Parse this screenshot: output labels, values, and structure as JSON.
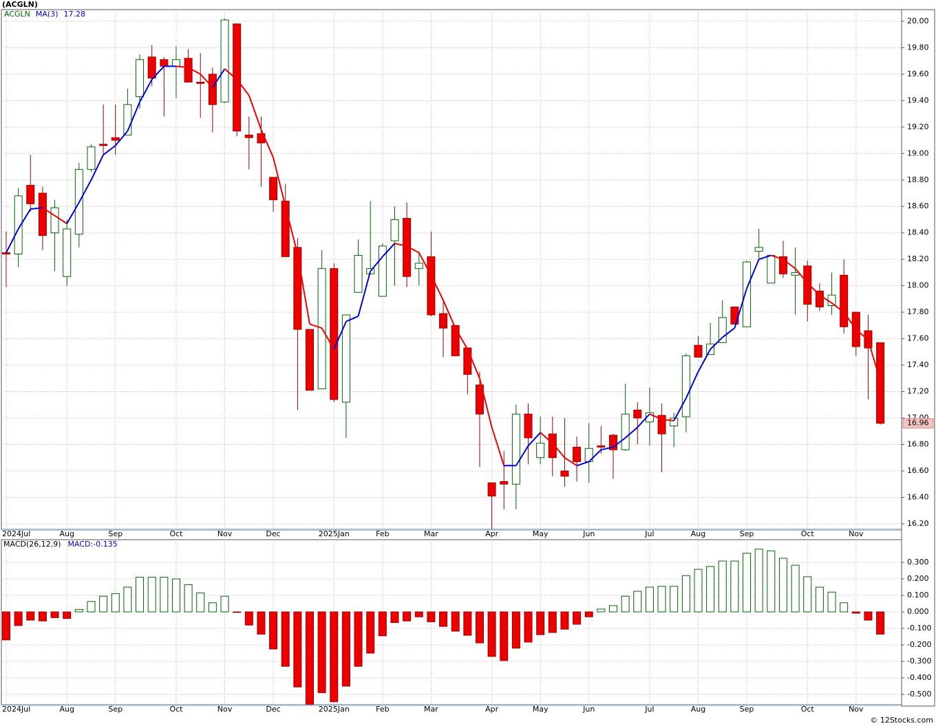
{
  "chart_data": [
    {
      "type": "candlestick",
      "title": "(ACGLN)",
      "symbol": "ACGLN",
      "symbol_color": "#006400",
      "up_color": "#ffffff",
      "up_edge": "#006400",
      "down_color": "#ee0000",
      "down_edge": "#990000",
      "open": [
        18.25,
        18.24,
        18.76,
        18.7,
        18.4,
        18.07,
        18.39,
        18.88,
        19.07,
        19.12,
        19.14,
        19.43,
        19.73,
        19.71,
        19.66,
        19.72,
        19.54,
        19.6,
        19.39,
        19.98,
        19.14,
        19.15,
        18.82,
        18.64,
        18.29,
        17.67,
        17.22,
        18.13,
        17.12,
        17.95,
        18.09,
        17.92,
        18.34,
        18.51,
        18.13,
        18.22,
        17.79,
        17.7,
        17.53,
        17.25,
        16.51,
        16.52,
        16.5,
        17.03,
        16.7,
        16.88,
        16.6,
        16.78,
        16.67,
        16.79,
        16.87,
        16.76,
        17.06,
        16.97,
        17.02,
        16.94,
        17.01,
        17.55,
        17.48,
        17.57,
        17.84,
        17.69,
        18.26,
        18.02,
        18.22,
        18.08,
        18.15,
        17.96,
        17.85,
        18.08,
        17.8,
        17.66,
        17.57
      ],
      "high": [
        18.41,
        18.74,
        18.99,
        18.75,
        18.65,
        18.5,
        18.93,
        19.07,
        19.37,
        19.37,
        19.49,
        19.75,
        19.82,
        19.73,
        19.81,
        19.79,
        19.76,
        19.65,
        20.02,
        19.98,
        19.28,
        19.28,
        18.82,
        18.77,
        18.36,
        17.67,
        18.27,
        18.17,
        17.78,
        18.35,
        18.64,
        18.32,
        18.6,
        18.63,
        18.26,
        18.41,
        17.9,
        17.7,
        17.53,
        17.35,
        16.51,
        16.75,
        17.1,
        17.11,
        17.01,
        17.01,
        17.0,
        16.86,
        16.96,
        16.94,
        16.88,
        17.26,
        17.12,
        17.23,
        17.11,
        17.04,
        17.49,
        17.62,
        17.72,
        17.89,
        17.84,
        18.19,
        18.43,
        18.23,
        18.34,
        18.29,
        18.19,
        18.02,
        18.1,
        18.2,
        17.8,
        17.78,
        17.57
      ],
      "low": [
        17.99,
        18.14,
        18.56,
        18.27,
        18.11,
        18.0,
        18.29,
        18.86,
        18.99,
        18.99,
        19.14,
        19.34,
        19.51,
        19.28,
        19.42,
        19.54,
        19.27,
        19.16,
        19.38,
        19.13,
        18.88,
        18.75,
        18.56,
        18.22,
        17.06,
        17.21,
        17.22,
        17.12,
        16.85,
        17.95,
        18.09,
        17.92,
        18.0,
        17.99,
        18.0,
        17.77,
        17.46,
        17.47,
        17.18,
        16.63,
        16.16,
        16.31,
        16.31,
        16.65,
        16.65,
        16.56,
        16.48,
        16.52,
        16.51,
        16.73,
        16.54,
        16.75,
        16.8,
        16.79,
        16.59,
        16.78,
        16.89,
        17.46,
        17.48,
        17.57,
        17.71,
        17.69,
        18.2,
        18.02,
        18.06,
        17.78,
        17.73,
        17.81,
        17.78,
        17.64,
        17.47,
        17.14,
        16.95
      ],
      "close": [
        18.24,
        18.68,
        18.62,
        18.38,
        18.59,
        18.43,
        18.88,
        19.05,
        19.06,
        19.1,
        19.37,
        19.71,
        19.57,
        19.66,
        19.71,
        19.54,
        19.53,
        19.37,
        20.01,
        19.17,
        19.12,
        19.08,
        18.65,
        18.22,
        17.67,
        17.21,
        18.13,
        17.14,
        17.78,
        18.23,
        18.13,
        18.3,
        18.5,
        18.07,
        18.17,
        17.78,
        17.68,
        17.47,
        17.33,
        17.03,
        16.41,
        16.5,
        17.03,
        16.85,
        16.81,
        16.7,
        16.56,
        16.67,
        16.77,
        16.78,
        16.76,
        17.03,
        17.0,
        17.04,
        16.88,
        17.0,
        17.47,
        17.46,
        17.56,
        17.76,
        17.71,
        18.18,
        18.29,
        18.23,
        18.09,
        18.1,
        17.86,
        17.84,
        17.93,
        17.69,
        17.54,
        17.53,
        16.96
      ],
      "last_box_color": "#f4c4c4",
      "ma": {
        "name": "MA(3)",
        "up_color": "#0000dd",
        "down_color": "#ee0000",
        "values": [
          18.25,
          18.43,
          18.58,
          18.59,
          18.53,
          18.47,
          18.63,
          18.8,
          18.99,
          19.06,
          19.17,
          19.39,
          19.56,
          19.66,
          19.66,
          19.65,
          19.6,
          19.5,
          19.64,
          19.56,
          19.44,
          19.18,
          18.97,
          18.6,
          18.24,
          17.71,
          17.68,
          17.52,
          17.73,
          17.77,
          18.11,
          18.22,
          18.32,
          18.3,
          18.25,
          18.08,
          17.89,
          17.68,
          17.52,
          17.3,
          16.93,
          16.64,
          16.64,
          16.79,
          16.89,
          16.81,
          16.7,
          16.64,
          16.67,
          16.76,
          16.78,
          16.85,
          16.93,
          17.03,
          16.99,
          16.98,
          17.15,
          17.35,
          17.52,
          17.61,
          17.68,
          17.98,
          18.2,
          18.23,
          18.2,
          18.13,
          18.02,
          17.93,
          17.87,
          17.8,
          17.67,
          17.59,
          17.28
        ]
      },
      "ylim": [
        16.158,
        20.088
      ],
      "yticks": [
        {
          "value": 16.2,
          "label": "16.20"
        },
        {
          "value": 16.4,
          "label": "16.40"
        },
        {
          "value": 16.6,
          "label": "16.60"
        },
        {
          "value": 16.8,
          "label": "16.80"
        },
        {
          "value": 17.0,
          "label": "17.00"
        },
        {
          "value": 17.2,
          "label": "17.20"
        },
        {
          "value": 17.4,
          "label": "17.40"
        },
        {
          "value": 17.6,
          "label": "17.60"
        },
        {
          "value": 17.8,
          "label": "17.80"
        },
        {
          "value": 18.0,
          "label": "18.00"
        },
        {
          "value": 18.2,
          "label": "18.20"
        },
        {
          "value": 18.4,
          "label": "18.40"
        },
        {
          "value": 18.6,
          "label": "18.60"
        },
        {
          "value": 18.8,
          "label": "18.80"
        },
        {
          "value": 19.0,
          "label": "19.00"
        },
        {
          "value": 19.2,
          "label": "19.20"
        },
        {
          "value": 19.4,
          "label": "19.40"
        },
        {
          "value": 19.6,
          "label": "19.60"
        },
        {
          "value": 19.8,
          "label": "19.80"
        },
        {
          "value": 20.0,
          "label": "20.00"
        }
      ],
      "xticks": [
        {
          "value": 0,
          "label": "2024Jul"
        },
        {
          "value": 5,
          "label": "Aug"
        },
        {
          "value": 9,
          "label": "Sep"
        },
        {
          "value": 14,
          "label": "Oct"
        },
        {
          "value": 18,
          "label": "Nov"
        },
        {
          "value": 22,
          "label": "Dec"
        },
        {
          "value": 27,
          "label": "2025Jan"
        },
        {
          "value": 31,
          "label": "Feb"
        },
        {
          "value": 35,
          "label": "Mar"
        },
        {
          "value": 40,
          "label": "Apr"
        },
        {
          "value": 44,
          "label": "May"
        },
        {
          "value": 48,
          "label": "Jun"
        },
        {
          "value": 53,
          "label": "Jul"
        },
        {
          "value": 57,
          "label": "Aug"
        },
        {
          "value": 61,
          "label": "Sep"
        },
        {
          "value": 66,
          "label": "Oct"
        },
        {
          "value": 70,
          "label": "Nov"
        }
      ],
      "grid": true
    },
    {
      "type": "bar",
      "title": "MACD(26,12,9)",
      "last_label": "MACD:",
      "label_color": "#0000cc",
      "pos_color": "#ffffff",
      "pos_edge": "#006400",
      "neg_color": "#ee0000",
      "neg_edge": "#990000",
      "values": [
        -0.17,
        -0.083,
        -0.05,
        -0.055,
        -0.035,
        -0.04,
        0.015,
        0.063,
        0.095,
        0.11,
        0.15,
        0.21,
        0.21,
        0.21,
        0.2,
        0.165,
        0.115,
        0.055,
        0.095,
        -0.003,
        -0.08,
        -0.135,
        -0.225,
        -0.33,
        -0.455,
        -0.56,
        -0.49,
        -0.545,
        -0.45,
        -0.33,
        -0.25,
        -0.145,
        -0.065,
        -0.055,
        -0.03,
        -0.06,
        -0.088,
        -0.117,
        -0.142,
        -0.188,
        -0.27,
        -0.295,
        -0.22,
        -0.183,
        -0.138,
        -0.125,
        -0.105,
        -0.075,
        -0.03,
        0.017,
        0.038,
        0.095,
        0.125,
        0.15,
        0.155,
        0.155,
        0.22,
        0.258,
        0.275,
        0.308,
        0.308,
        0.355,
        0.38,
        0.37,
        0.325,
        0.283,
        0.213,
        0.15,
        0.12,
        0.055,
        -0.008,
        -0.05,
        -0.135
      ],
      "ylim": [
        -0.5625,
        0.4375
      ],
      "yticks": [
        {
          "value": 0.3,
          "label": "0.300"
        },
        {
          "value": 0.2,
          "label": "0.200"
        },
        {
          "value": 0.1,
          "label": "0.100"
        },
        {
          "value": 0,
          "label": "0.000"
        },
        {
          "value": -0.1,
          "label": "-0.100"
        },
        {
          "value": -0.2,
          "label": "-0.200"
        },
        {
          "value": -0.3,
          "label": "-0.300"
        },
        {
          "value": -0.4,
          "label": "-0.400"
        },
        {
          "value": -0.5,
          "label": "-0.500"
        }
      ],
      "grid": true
    }
  ],
  "footer": "© 12Stocks.com"
}
